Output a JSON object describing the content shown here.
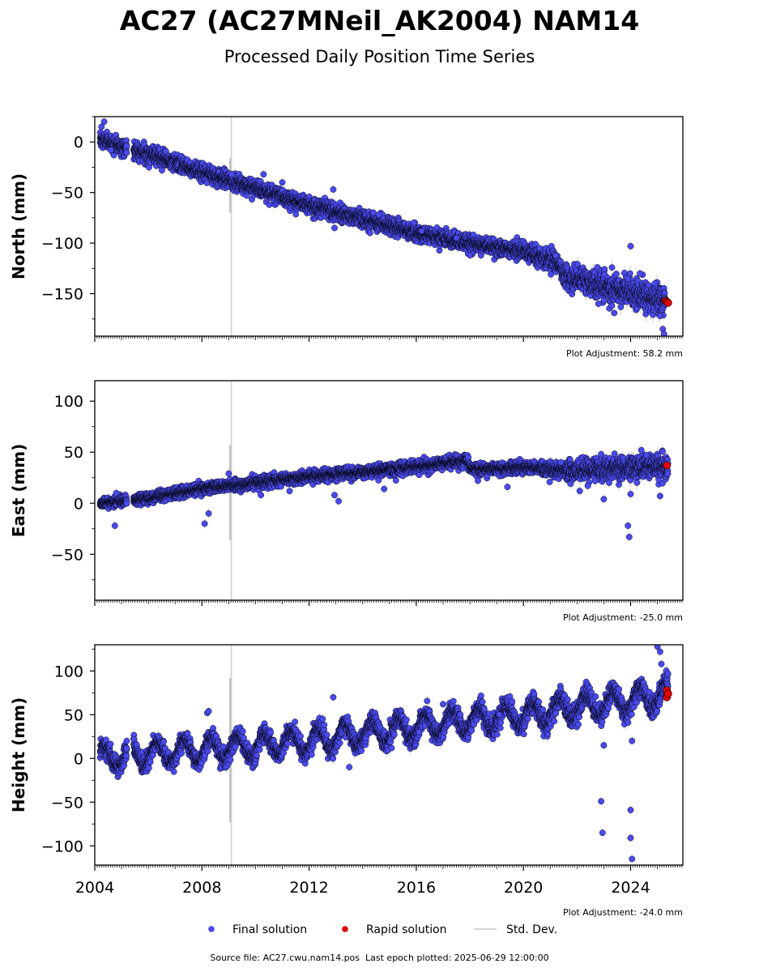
{
  "title": "AC27 (AC27MNeil_AK2004) NAM14",
  "subtitle": "Processed Daily Position Time Series",
  "footer": {
    "source_label": "Source file:",
    "source_file": "AC27.cwu.nam14.pos",
    "last_epoch_label": "Last epoch plotted:",
    "last_epoch": "2025-06-29 12:00:00"
  },
  "colors": {
    "final": "#4a4af0",
    "rapid": "#e00000",
    "stddev": "#c8c8c8",
    "point_edge": "#000000"
  },
  "chart_data": {
    "type": "scatter",
    "x_ticks": [
      "2004",
      "2008",
      "2012",
      "2016",
      "2020",
      "2024"
    ],
    "xlim": [
      2004.0,
      2025.95
    ],
    "x_minor_ticks": "monthly",
    "legend": {
      "placement": "bottom-center",
      "entries": [
        {
          "label": "Final solution",
          "kind": "final"
        },
        {
          "label": "Rapid solution",
          "kind": "rapid"
        },
        {
          "label": "Std. Dev.",
          "kind": "stddev"
        }
      ]
    },
    "vertical_line_x": 2009.1,
    "panels": [
      {
        "name": "north",
        "ylabel": "North (mm)",
        "ylim": [
          -192,
          25
        ],
        "yticks": [
          0,
          -50,
          -100,
          -150
        ],
        "y_minor_step": 25,
        "adjustment": "Plot Adjustment: 58.2 mm",
        "gaps": [
          [
            2005.2,
            2005.45
          ]
        ],
        "trend": [
          [
            2004.2,
            2
          ],
          [
            2005.5,
            -8
          ],
          [
            2009,
            -38
          ],
          [
            2012,
            -62
          ],
          [
            2016,
            -90
          ],
          [
            2018,
            -100
          ],
          [
            2020,
            -108
          ],
          [
            2021.3,
            -120
          ],
          [
            2021.55,
            -133
          ],
          [
            2023,
            -143
          ],
          [
            2025.3,
            -157
          ]
        ],
        "noise_sd": [
          [
            2004.0,
            4
          ],
          [
            2020,
            4
          ],
          [
            2022,
            6
          ],
          [
            2025.5,
            7
          ]
        ],
        "seasonal_amp": 0,
        "outliers": [
          [
            2004.35,
            20
          ],
          [
            2004.25,
            15
          ],
          [
            2004.6,
            -8
          ],
          [
            2009.1,
            -32
          ],
          [
            2010.3,
            -32
          ],
          [
            2011.0,
            -40
          ],
          [
            2012.9,
            -47
          ],
          [
            2012.95,
            -85
          ],
          [
            2014.4,
            -70
          ],
          [
            2014.6,
            -72
          ],
          [
            2015.9,
            -80
          ],
          [
            2016.2,
            -88
          ],
          [
            2017.5,
            -95
          ],
          [
            2018.0,
            -112
          ],
          [
            2020.6,
            -105
          ],
          [
            2021.2,
            -112
          ],
          [
            2022.8,
            -160
          ],
          [
            2023.3,
            -162
          ],
          [
            2023.9,
            -135
          ],
          [
            2024.0,
            -103
          ],
          [
            2024.35,
            -130
          ],
          [
            2024.9,
            -140
          ],
          [
            2025.1,
            -172
          ],
          [
            2025.2,
            -185
          ],
          [
            2025.25,
            -190
          ]
        ],
        "rapid": [
          [
            2025.3,
            -157
          ],
          [
            2025.35,
            -158
          ],
          [
            2025.4,
            -159
          ]
        ],
        "stddev_spike": {
          "x": 2009.05,
          "y1": -70,
          "y2": -16
        }
      },
      {
        "name": "east",
        "ylabel": "East (mm)",
        "ylim": [
          -95,
          120
        ],
        "yticks": [
          100,
          50,
          0,
          -50
        ],
        "y_minor_step": 25,
        "adjustment": "Plot Adjustment: -25.0 mm",
        "gaps": [
          [
            2005.2,
            2005.45
          ]
        ],
        "trend": [
          [
            2004.2,
            0
          ],
          [
            2005.5,
            3
          ],
          [
            2008,
            14
          ],
          [
            2010,
            20
          ],
          [
            2012,
            26
          ],
          [
            2014,
            30
          ],
          [
            2016,
            36
          ],
          [
            2017.9,
            42
          ],
          [
            2018.05,
            33
          ],
          [
            2020,
            35
          ],
          [
            2022,
            32
          ],
          [
            2025.4,
            36
          ]
        ],
        "noise_sd": [
          [
            2004.0,
            2.5
          ],
          [
            2020.5,
            3
          ],
          [
            2022,
            5
          ],
          [
            2025.5,
            6
          ]
        ],
        "seasonal_amp": 0,
        "outliers": [
          [
            2004.75,
            -22
          ],
          [
            2004.8,
            10
          ],
          [
            2008.1,
            -20
          ],
          [
            2008.25,
            -10
          ],
          [
            2009.0,
            29
          ],
          [
            2010.2,
            8
          ],
          [
            2012.95,
            8
          ],
          [
            2013.1,
            2
          ],
          [
            2014.8,
            14
          ],
          [
            2018.3,
            22
          ],
          [
            2019.4,
            16
          ],
          [
            2021.4,
            40
          ],
          [
            2022.1,
            12
          ],
          [
            2022.4,
            17
          ],
          [
            2022.9,
            48
          ],
          [
            2023.0,
            4
          ],
          [
            2023.2,
            20
          ],
          [
            2023.9,
            -22
          ],
          [
            2023.95,
            -33
          ],
          [
            2024.0,
            9
          ],
          [
            2024.4,
            52
          ],
          [
            2024.6,
            47
          ],
          [
            2025.1,
            7
          ]
        ],
        "rapid": [
          [
            2025.35,
            37
          ]
        ],
        "stddev_spike": {
          "x": 2009.05,
          "y1": -36,
          "y2": 57
        }
      },
      {
        "name": "height",
        "ylabel": "Height (mm)",
        "ylim": [
          -122,
          130
        ],
        "yticks": [
          100,
          50,
          0,
          -50,
          -100
        ],
        "y_minor_step": 25,
        "adjustment": "Plot Adjustment: -24.0 mm",
        "gaps": [
          [
            2005.2,
            2005.45
          ]
        ],
        "trend": [
          [
            2004.2,
            0
          ],
          [
            2008,
            10
          ],
          [
            2012,
            20
          ],
          [
            2016,
            36
          ],
          [
            2020,
            50
          ],
          [
            2024,
            66
          ],
          [
            2025.4,
            74
          ]
        ],
        "noise_sd": [
          [
            2004.0,
            5
          ],
          [
            2025.5,
            6
          ]
        ],
        "seasonal_amp": 13,
        "outliers": [
          [
            2008.2,
            52
          ],
          [
            2008.25,
            54
          ],
          [
            2012.9,
            70
          ],
          [
            2013.5,
            -10
          ],
          [
            2016.1,
            30
          ],
          [
            2017.0,
            62
          ],
          [
            2019.1,
            50
          ],
          [
            2022.9,
            -49
          ],
          [
            2022.95,
            -85
          ],
          [
            2023.0,
            15
          ],
          [
            2024.0,
            -59
          ],
          [
            2024.0,
            -91
          ],
          [
            2024.05,
            -115
          ],
          [
            2024.05,
            20
          ],
          [
            2025.0,
            128
          ],
          [
            2025.1,
            122
          ],
          [
            2025.15,
            108
          ]
        ],
        "rapid": [
          [
            2025.35,
            78
          ],
          [
            2025.35,
            70
          ],
          [
            2025.4,
            74
          ]
        ],
        "stddev_spike": {
          "x": 2009.05,
          "y1": -73,
          "y2": 92
        }
      }
    ]
  }
}
